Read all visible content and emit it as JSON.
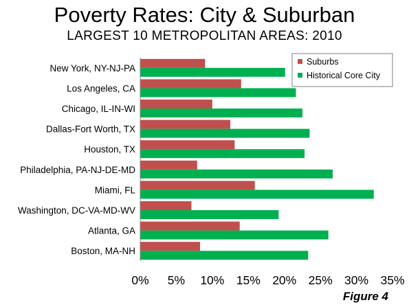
{
  "title": "Poverty Rates: City & Suburban",
  "subtitle": "LARGEST 10 METROPOLITAN AREAS: 2010",
  "figure_label": "Figure 4",
  "colors": {
    "suburbs": "#c0504d",
    "core": "#00b050"
  },
  "chart_data": {
    "type": "bar",
    "orientation": "horizontal",
    "title": "Poverty Rates: City & Suburban",
    "subtitle": "LARGEST 10 METROPOLITAN AREAS: 2010",
    "categories": [
      "New York, NY-NJ-PA",
      "Los Angeles, CA",
      "Chicago, IL-IN-WI",
      "Dallas-Fort Worth, TX",
      "Houston, TX",
      "Philadelphia, PA-NJ-DE-MD",
      "Miami, FL",
      "Washington, DC-VA-MD-WV",
      "Atlanta, GA",
      "Boston, MA-NH"
    ],
    "series": [
      {
        "name": "Suburbs",
        "values": [
          9.0,
          14.0,
          10.0,
          12.5,
          13.1,
          7.9,
          15.9,
          7.1,
          13.8,
          8.3
        ]
      },
      {
        "name": "Historical Core City",
        "values": [
          20.1,
          21.6,
          22.5,
          23.5,
          22.8,
          26.7,
          32.4,
          19.2,
          26.1,
          23.3
        ]
      }
    ],
    "xlim": [
      0,
      35
    ],
    "xticks": [
      "0%",
      "5%",
      "10%",
      "15%",
      "20%",
      "25%",
      "30%",
      "35%"
    ],
    "grid": false,
    "legend": "top-right"
  }
}
